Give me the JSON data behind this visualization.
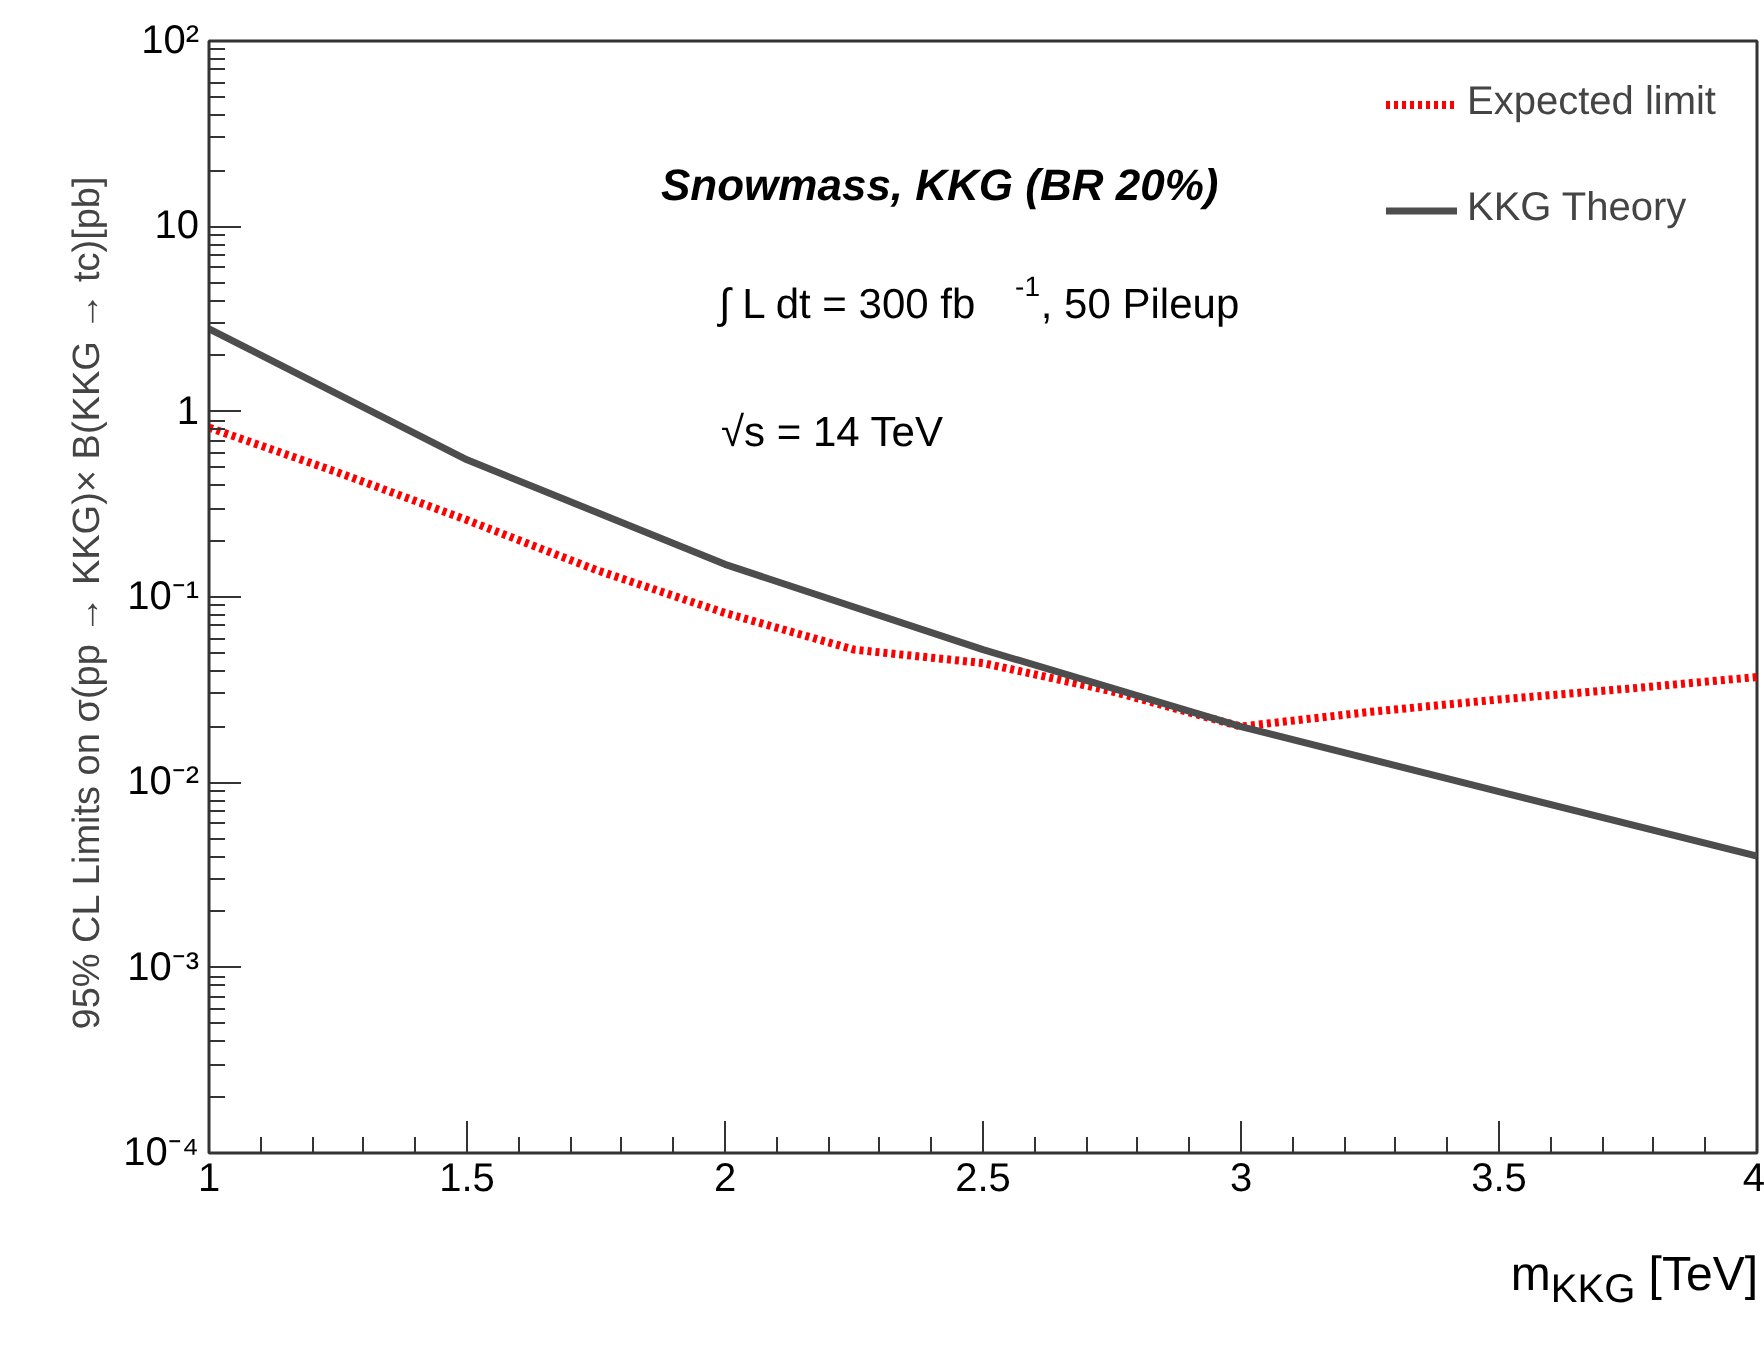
{
  "chart_data": {
    "type": "line",
    "xlabel": "m$_{KKG}$ [TeV]",
    "ylabel": "95% CL Limits on  σ(pp → KKG)× B(KKG → tc)[pb]",
    "annotations": [
      "Snowmass, KKG (BR 20%)",
      "∫ L dt =  300 fb$^{-1}$, 50 Pileup",
      "√s = 14 TeV"
    ],
    "log": "y",
    "xlim": [
      1,
      4
    ],
    "ylim": [
      0.0001,
      100
    ],
    "xticks": [
      1,
      1.5,
      2,
      2.5,
      3,
      3.5,
      4
    ],
    "yticks": [
      {
        "value": 0.0001,
        "label": "10⁻⁴"
      },
      {
        "value": 0.001,
        "label": "10⁻³"
      },
      {
        "value": 0.01,
        "label": "10⁻²"
      },
      {
        "value": 0.1,
        "label": "10⁻¹"
      },
      {
        "value": 1,
        "label": "1"
      },
      {
        "value": 10,
        "label": "10"
      },
      {
        "value": 100,
        "label": "10²"
      }
    ],
    "grid": false,
    "legend": "top right",
    "series": [
      {
        "name": "Expected limit",
        "color": "#ff0000",
        "line_style": "dotted",
        "x": [
          1,
          1.25,
          1.5,
          1.75,
          2,
          2.25,
          2.5,
          2.75,
          3,
          3.25,
          3.5,
          3.75,
          4
        ],
        "values": [
          0.82,
          0.47,
          0.26,
          0.14,
          0.082,
          0.052,
          0.044,
          0.031,
          0.02,
          0.024,
          0.028,
          0.032,
          0.037
        ]
      },
      {
        "name": "KKG Theory",
        "color": "#4d4d4d",
        "line_style": "solid",
        "x": [
          1,
          1.5,
          2,
          2.5,
          3,
          3.5,
          4
        ],
        "values": [
          2.8,
          0.55,
          0.15,
          0.052,
          0.02,
          0.0089,
          0.004
        ]
      }
    ]
  }
}
